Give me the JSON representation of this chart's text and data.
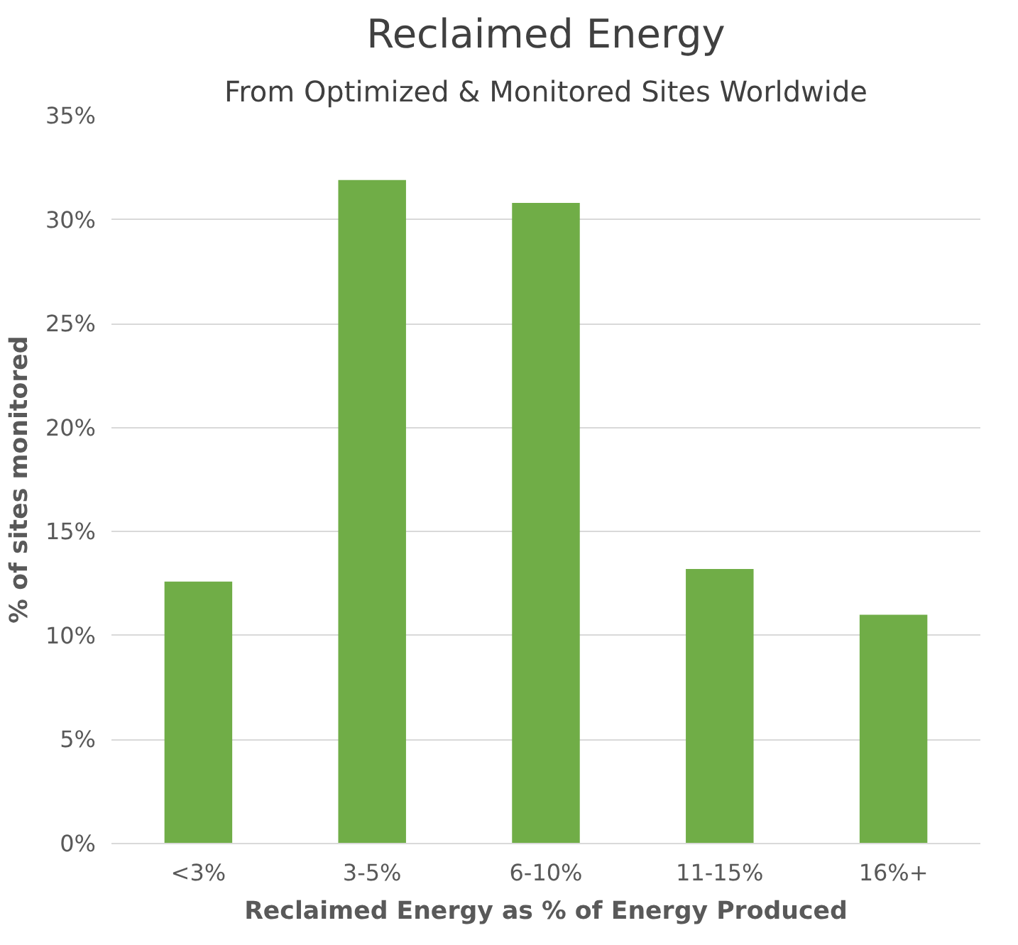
{
  "chart_data": {
    "type": "bar",
    "title": "Reclaimed Energy",
    "subtitle": "From Optimized & Monitored Sites Worldwide",
    "xlabel": "Reclaimed Energy as % of Energy Produced",
    "ylabel": "% of sites monitored",
    "categories": [
      "<3%",
      "3-5%",
      "6-10%",
      "11-15%",
      "16%+"
    ],
    "values": [
      12.6,
      31.9,
      30.8,
      13.2,
      11.0
    ],
    "color": "#70ad47",
    "ylim": [
      0,
      35
    ],
    "yticks": [
      {
        "value": 0,
        "label": "0%"
      },
      {
        "value": 5,
        "label": "5%"
      },
      {
        "value": 10,
        "label": "10%"
      },
      {
        "value": 15,
        "label": "15%"
      },
      {
        "value": 20,
        "label": "20%"
      },
      {
        "value": 25,
        "label": "25%"
      },
      {
        "value": 30,
        "label": "30%"
      },
      {
        "value": 35,
        "label": "35%"
      }
    ],
    "grid": "y"
  }
}
